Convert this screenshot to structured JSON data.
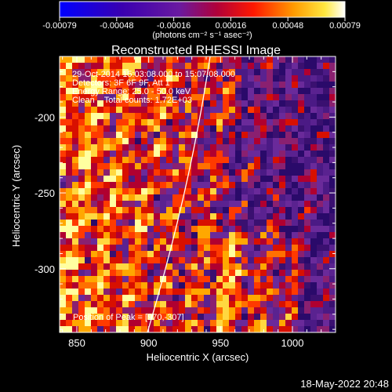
{
  "window": {
    "title": "Reconstructed RHESSI Image",
    "footer_timestamp": "18-May-2022 20:48"
  },
  "colorbar": {
    "ticks": [
      "-0.00079",
      "-0.00048",
      "-0.00016",
      "0.00016",
      "0.00048",
      "0.00079"
    ],
    "unit_label": "(photons cm⁻² s⁻¹ asec⁻²)",
    "colors": [
      "#0000ff",
      "#5a007f",
      "#8a3ea8",
      "#c0003a",
      "#ff2a00",
      "#ff9a00",
      "#ffee40",
      "#ffffff"
    ]
  },
  "image": {
    "info_lines": [
      "29-Oct-2014 15:03:08.000 to 15:07:08.000",
      "Detectors: 3F 6F 9F, Att 1",
      "Energy Range: 25.0 - 50.0 keV",
      "Clean    Total counts: 1.72E+03"
    ],
    "peak_label": "Position of Peak = [970,-307]",
    "peak": {
      "x": 970,
      "y": -307
    }
  },
  "axes": {
    "x_label": "Heliocentric X (arcsec)",
    "y_label": "Heliocentric Y (arcsec)",
    "x_ticks": [
      "850",
      "900",
      "950",
      "1000"
    ],
    "y_ticks": [
      "-200",
      "-250",
      "-300"
    ],
    "x_range": [
      838,
      1030
    ],
    "y_range": [
      -342,
      -160
    ]
  }
}
